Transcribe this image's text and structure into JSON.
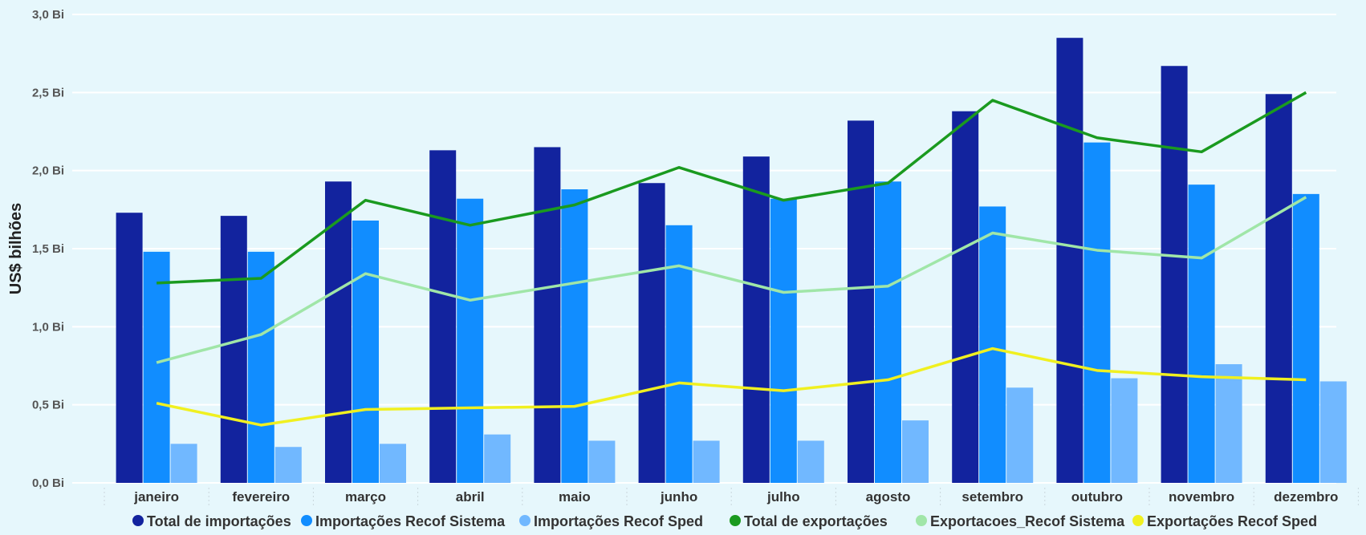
{
  "chart_data": {
    "type": "bar",
    "title": "",
    "xlabel": "",
    "ylabel": "US$ bilhões",
    "ylim": [
      0,
      3
    ],
    "y_ticks": [
      0,
      0.5,
      1.0,
      1.5,
      2.0,
      2.5,
      3.0
    ],
    "y_tick_labels": [
      "0,0 Bi",
      "0,5 Bi",
      "1,0 Bi",
      "1,5 Bi",
      "2,0 Bi",
      "2,5 Bi",
      "3,0 Bi"
    ],
    "categories": [
      "janeiro",
      "fevereiro",
      "março",
      "abril",
      "maio",
      "junho",
      "julho",
      "agosto",
      "setembro",
      "outubro",
      "novembro",
      "dezembro"
    ],
    "legend_position": "bottom",
    "series": [
      {
        "name": "Total de importações",
        "kind": "bar",
        "color": "#12239e",
        "values": [
          1.73,
          1.71,
          1.93,
          2.13,
          2.15,
          1.92,
          2.09,
          2.32,
          2.38,
          2.85,
          2.67,
          2.49
        ]
      },
      {
        "name": "Importações Recof Sistema",
        "kind": "bar",
        "color": "#118dff",
        "values": [
          1.48,
          1.48,
          1.68,
          1.82,
          1.88,
          1.65,
          1.82,
          1.93,
          1.77,
          2.18,
          1.91,
          1.85
        ]
      },
      {
        "name": "Importações Recof Sped",
        "kind": "bar",
        "color": "#71b8ff",
        "values": [
          0.25,
          0.23,
          0.25,
          0.31,
          0.27,
          0.27,
          0.27,
          0.4,
          0.61,
          0.67,
          0.76,
          0.65
        ]
      },
      {
        "name": "Total de exportações",
        "kind": "line",
        "color": "#1a9a1f",
        "values": [
          1.28,
          1.31,
          1.81,
          1.65,
          1.78,
          2.02,
          1.81,
          1.92,
          2.45,
          2.21,
          2.12,
          2.5
        ]
      },
      {
        "name": "Exportacoes_Recof Sistema",
        "kind": "line",
        "color": "#a0e6a8",
        "values": [
          0.77,
          0.95,
          1.34,
          1.17,
          1.28,
          1.39,
          1.22,
          1.26,
          1.6,
          1.49,
          1.44,
          1.83
        ]
      },
      {
        "name": "Exportações Recof Sped",
        "kind": "line",
        "color": "#f0f020",
        "values": [
          0.51,
          0.37,
          0.47,
          0.48,
          0.49,
          0.64,
          0.59,
          0.66,
          0.86,
          0.72,
          0.68,
          0.66
        ]
      }
    ]
  }
}
